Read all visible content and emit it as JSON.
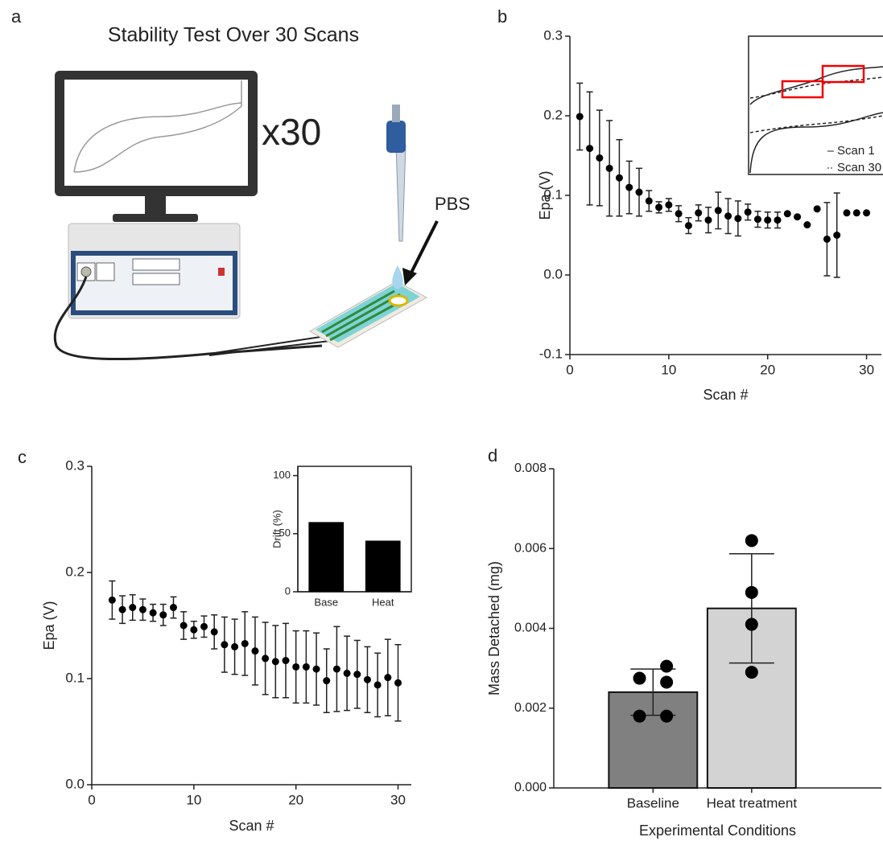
{
  "panel_a": {
    "panel": "a",
    "title": "Stability Test Over 30 Scans",
    "annotations": [
      "x30",
      "PBS"
    ]
  },
  "chart_data": [
    {
      "type": "scatter",
      "panel": "b",
      "xlabel": "Scan #",
      "ylabel": "Epa (V)",
      "x": [
        1,
        2,
        3,
        4,
        5,
        6,
        7,
        8,
        9,
        10,
        11,
        12,
        13,
        14,
        15,
        16,
        17,
        18,
        19,
        20,
        21,
        22,
        23,
        24,
        25,
        26,
        27,
        28,
        29,
        30
      ],
      "values": [
        0.199,
        0.159,
        0.147,
        0.134,
        0.122,
        0.11,
        0.104,
        0.093,
        0.085,
        0.088,
        0.077,
        0.062,
        0.078,
        0.069,
        0.081,
        0.074,
        0.071,
        0.079,
        0.07,
        0.069,
        0.069,
        0.077,
        0.073,
        0.063,
        0.083,
        0.045,
        0.05,
        0.078,
        0.078,
        0.078
      ],
      "errors": [
        0.042,
        0.071,
        0.06,
        0.06,
        0.048,
        0.033,
        0.03,
        0.013,
        0.007,
        0.008,
        0.01,
        0.01,
        0.01,
        0.016,
        0.023,
        0.022,
        0.022,
        0.01,
        0.01,
        0.01,
        0.01,
        0,
        0,
        0,
        0,
        0.046,
        0.053,
        0,
        0,
        0
      ],
      "color": "#000000",
      "xlim": [
        0,
        31.5
      ],
      "xticks": [
        0,
        10,
        20,
        30
      ],
      "ylim": [
        -0.1,
        0.3
      ],
      "yticks": [
        -0.1,
        {
          "value": 0,
          "label": "0.0"
        },
        0.1,
        0.2,
        0.3
      ],
      "inset": {
        "legend": [
          "Scan 1",
          "Scan 30"
        ]
      }
    },
    {
      "type": "scatter",
      "panel": "c",
      "xlabel": "Scan #",
      "ylabel": "Epa (V)",
      "x": [
        2,
        3,
        4,
        5,
        6,
        7,
        8,
        9,
        10,
        11,
        12,
        13,
        14,
        15,
        16,
        17,
        18,
        19,
        20,
        21,
        22,
        23,
        24,
        25,
        26,
        27,
        28,
        29,
        30
      ],
      "values": [
        0.174,
        0.165,
        0.167,
        0.165,
        0.162,
        0.16,
        0.167,
        0.15,
        0.146,
        0.149,
        0.144,
        0.132,
        0.13,
        0.133,
        0.126,
        0.119,
        0.116,
        0.117,
        0.111,
        0.111,
        0.109,
        0.098,
        0.109,
        0.105,
        0.104,
        0.099,
        0.094,
        0.101,
        0.096
      ],
      "errors": [
        0.018,
        0.013,
        0.012,
        0.01,
        0.008,
        0.01,
        0.01,
        0.013,
        0.008,
        0.01,
        0.016,
        0.026,
        0.026,
        0.03,
        0.032,
        0.034,
        0.034,
        0.035,
        0.034,
        0.034,
        0.034,
        0.03,
        0.04,
        0.035,
        0.032,
        0.031,
        0.03,
        0.036,
        0.036
      ],
      "color": "#000000",
      "xlim": [
        0,
        31.3
      ],
      "xticks": [
        0,
        10,
        20,
        30
      ],
      "ylim": [
        0,
        0.3
      ],
      "yticks": [
        {
          "value": 0,
          "label": "0.0"
        },
        0.1,
        0.2,
        0.3
      ]
    },
    {
      "type": "bar",
      "ylabel": "Drift (%)",
      "categories": [
        "Base",
        "Heat"
      ],
      "values": [
        60,
        44
      ],
      "color": "#000000",
      "ylim": [
        0,
        108
      ],
      "yticks": [
        0,
        50,
        100
      ]
    },
    {
      "type": "barpoints",
      "panel": "d",
      "xlabel": "Experimental Conditions",
      "ylabel": "Mass Detached (mg)",
      "categories": [
        "Baseline",
        "Heat treatment"
      ],
      "values": [
        0.0024,
        0.0045
      ],
      "errors": [
        0.00058,
        0.00137
      ],
      "colors": [
        "#808080",
        "#d3d3d3"
      ],
      "points": [
        [
          0.00305,
          0.00275,
          0.00265,
          0.0018,
          0.0018
        ],
        [
          0.0062,
          0.0049,
          0.0041,
          0.0029
        ]
      ],
      "ylim": [
        0,
        0.008
      ],
      "yticks": [
        {
          "value": 0,
          "label": "0.000"
        },
        {
          "value": 0.002,
          "label": "0.002"
        },
        {
          "value": 0.004,
          "label": "0.004"
        },
        {
          "value": 0.006,
          "label": "0.006"
        },
        {
          "value": 0.008,
          "label": "0.008"
        }
      ]
    }
  ]
}
